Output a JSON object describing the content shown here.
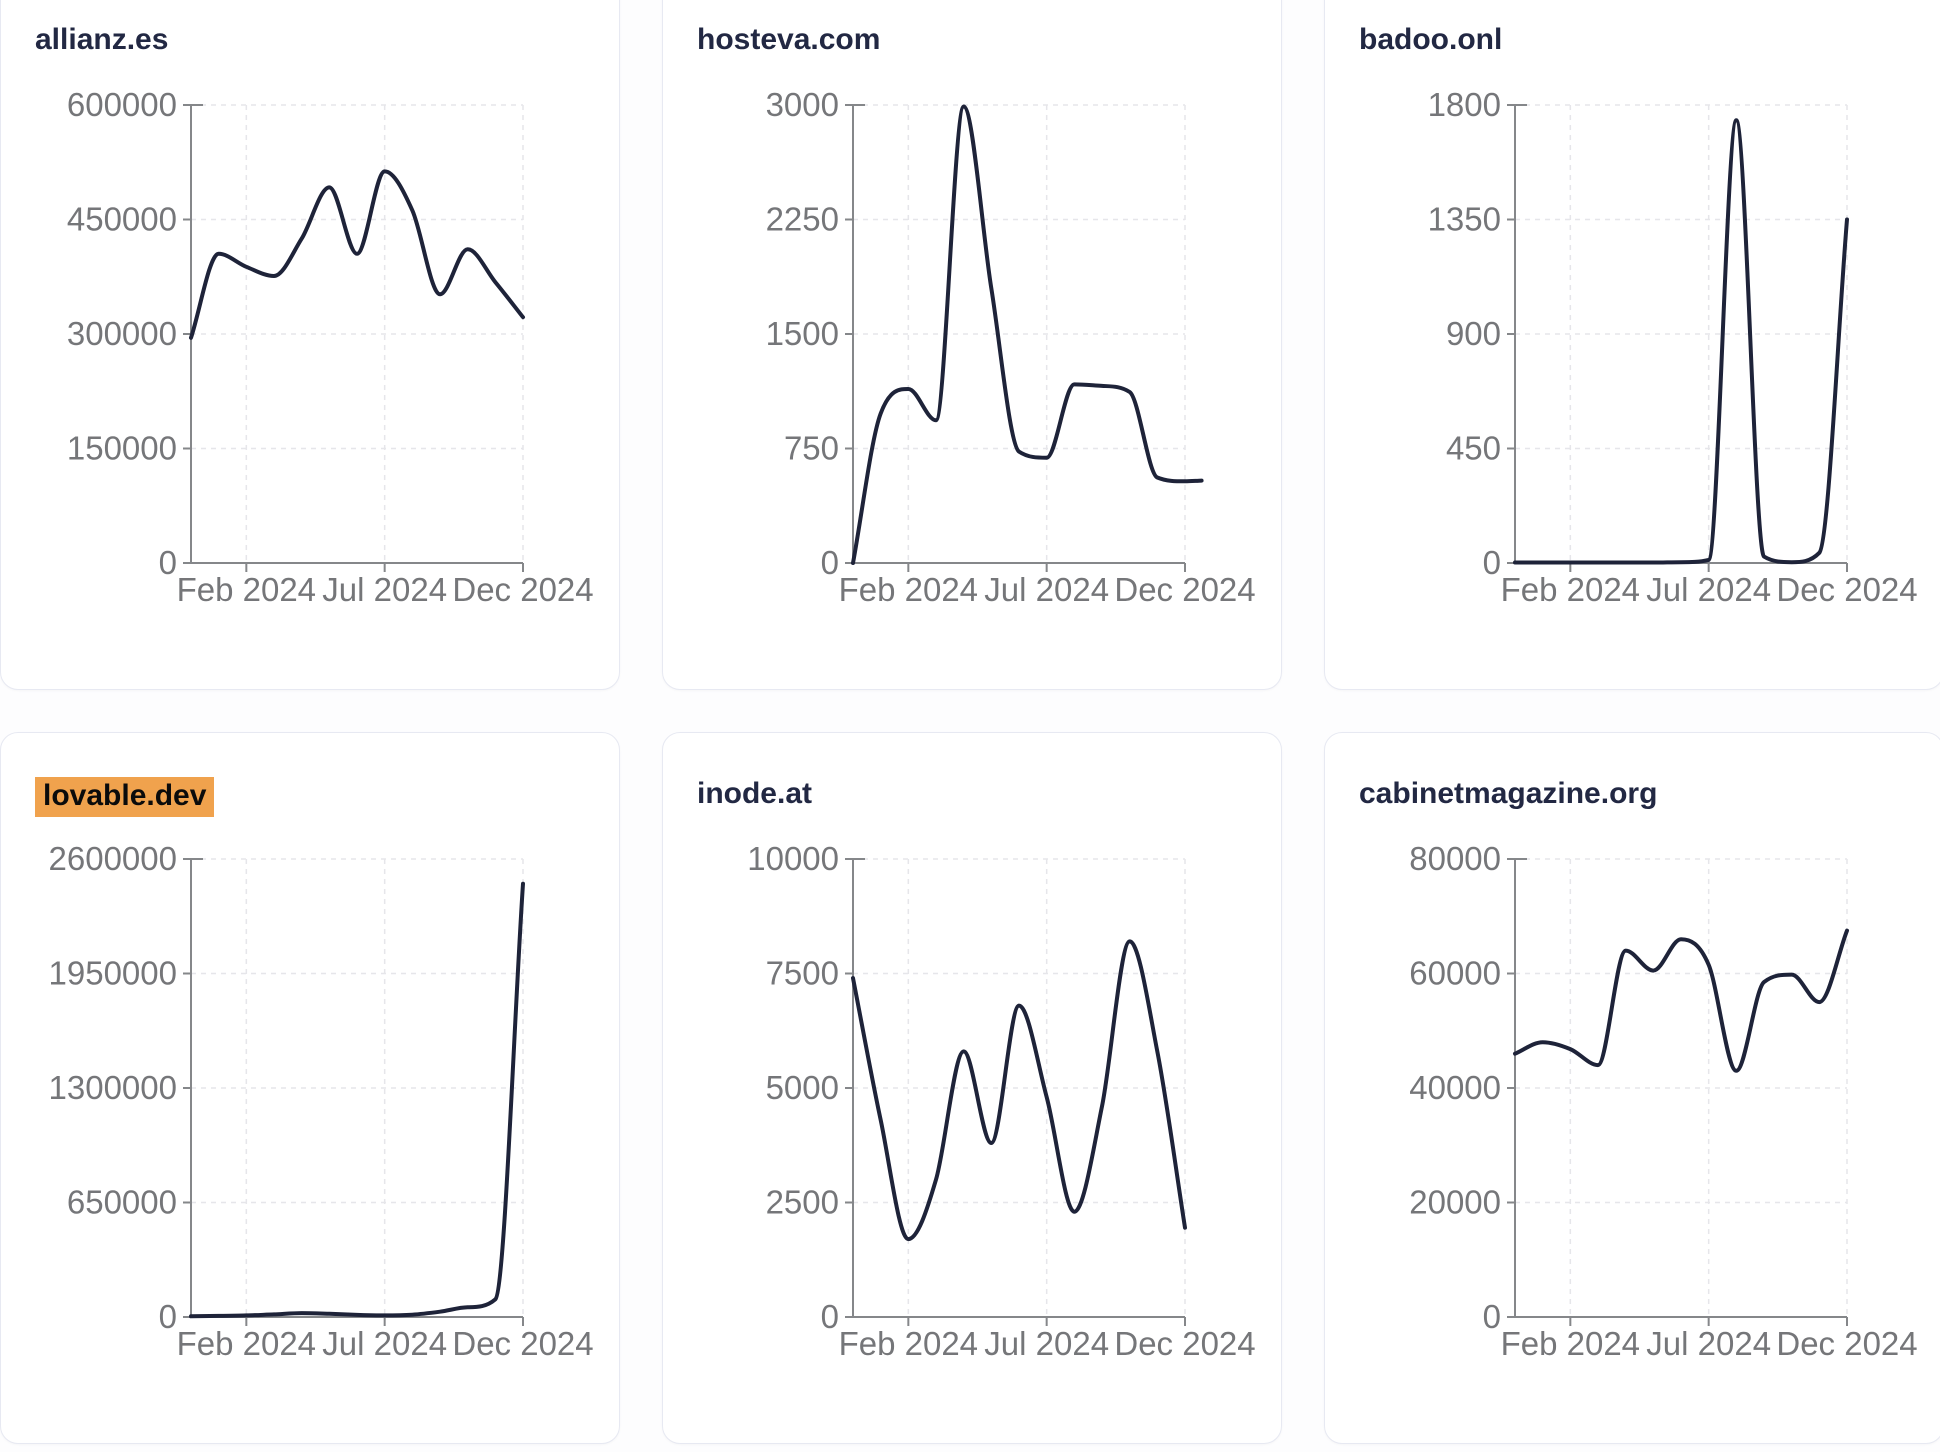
{
  "page": {
    "background": "#fdfdfe"
  },
  "theme": {
    "line_color": "#1e2339",
    "title_color": "#222843",
    "tick_label_color": "#757679",
    "axis_color": "#85878a",
    "grid_color": "#e6e6ea",
    "card_background": "#ffffff",
    "card_border": "#e7e9f2",
    "highlight_background": "#f0a24d",
    "highlight_text": "#0b0b0b"
  },
  "x_axis": {
    "start_month": "Dec 2023",
    "end_month": "Dec 2024",
    "tick_labels": [
      "Feb 2024",
      "Jul 2024",
      "Dec 2024"
    ],
    "tick_month_index": [
      2,
      7,
      12
    ]
  },
  "chart_data": [
    {
      "type": "line",
      "title": "allianz.es",
      "highlighted": false,
      "y_max": 600000,
      "y_ticks": [
        0,
        150000,
        300000,
        450000,
        600000
      ],
      "x_tick_labels": [
        "Feb 2024",
        "Jul 2024",
        "Dec 2024"
      ],
      "points": [
        [
          0,
          295000
        ],
        [
          1,
          405000
        ],
        [
          2,
          388000
        ],
        [
          3,
          376000
        ],
        [
          4,
          425000
        ],
        [
          5,
          492000
        ],
        [
          6,
          405000
        ],
        [
          7,
          513000
        ],
        [
          8,
          462000
        ],
        [
          9,
          352000
        ],
        [
          10,
          411000
        ],
        [
          11,
          368000
        ],
        [
          12,
          322000
        ]
      ]
    },
    {
      "type": "line",
      "title": "hosteva.com",
      "highlighted": false,
      "y_max": 3000,
      "y_ticks": [
        0,
        750,
        1500,
        2250,
        3000
      ],
      "x_tick_labels": [
        "Feb 2024",
        "Jul 2024",
        "Dec 2024"
      ],
      "points": [
        [
          0,
          0
        ],
        [
          1,
          980
        ],
        [
          2,
          1140
        ],
        [
          3,
          935
        ],
        [
          4,
          2990
        ],
        [
          5,
          1800
        ],
        [
          6,
          730
        ],
        [
          7,
          690
        ],
        [
          8,
          1170
        ],
        [
          9,
          1160
        ],
        [
          10,
          1120
        ],
        [
          11,
          560
        ],
        [
          12,
          535
        ],
        [
          12.6,
          540
        ]
      ]
    },
    {
      "type": "line",
      "title": "badoo.onl",
      "highlighted": false,
      "y_max": 1800,
      "y_ticks": [
        0,
        450,
        900,
        1350,
        1800
      ],
      "x_tick_labels": [
        "Feb 2024",
        "Jul 2024",
        "Dec 2024"
      ],
      "points": [
        [
          0,
          2
        ],
        [
          1,
          2
        ],
        [
          2,
          2
        ],
        [
          3,
          2
        ],
        [
          4,
          2
        ],
        [
          5,
          2
        ],
        [
          6,
          3
        ],
        [
          7,
          12
        ],
        [
          8,
          1740
        ],
        [
          9,
          25
        ],
        [
          10,
          3
        ],
        [
          11,
          40
        ],
        [
          12,
          1350
        ]
      ]
    },
    {
      "type": "line",
      "title": "lovable.dev",
      "highlighted": true,
      "y_max": 2600000,
      "y_ticks": [
        0,
        650000,
        1300000,
        1950000,
        2600000
      ],
      "x_tick_labels": [
        "Feb 2024",
        "Jul 2024",
        "Dec 2024"
      ],
      "points": [
        [
          0,
          4000
        ],
        [
          1,
          6000
        ],
        [
          2,
          9000
        ],
        [
          3,
          15000
        ],
        [
          4,
          22000
        ],
        [
          5,
          18000
        ],
        [
          6,
          12000
        ],
        [
          7,
          9000
        ],
        [
          8,
          13000
        ],
        [
          9,
          30000
        ],
        [
          10,
          55000
        ],
        [
          11,
          100000
        ],
        [
          12,
          2460000
        ]
      ]
    },
    {
      "type": "line",
      "title": "inode.at",
      "highlighted": false,
      "y_max": 10000,
      "y_ticks": [
        0,
        2500,
        5000,
        7500,
        10000
      ],
      "x_tick_labels": [
        "Feb 2024",
        "Jul 2024",
        "Dec 2024"
      ],
      "points": [
        [
          0,
          7400
        ],
        [
          1,
          4300
        ],
        [
          2,
          1700
        ],
        [
          3,
          3000
        ],
        [
          4,
          5800
        ],
        [
          5,
          3800
        ],
        [
          6,
          6800
        ],
        [
          7,
          4800
        ],
        [
          8,
          2300
        ],
        [
          9,
          4600
        ],
        [
          10,
          8200
        ],
        [
          11,
          5800
        ],
        [
          12,
          1950
        ]
      ]
    },
    {
      "type": "line",
      "title": "cabinetmagazine.org",
      "highlighted": false,
      "y_max": 80000,
      "y_ticks": [
        0,
        20000,
        40000,
        60000,
        80000
      ],
      "x_tick_labels": [
        "Feb 2024",
        "Jul 2024",
        "Dec 2024"
      ],
      "points": [
        [
          0,
          46000
        ],
        [
          1,
          48000
        ],
        [
          2,
          46800
        ],
        [
          3,
          44000
        ],
        [
          4,
          64000
        ],
        [
          5,
          60500
        ],
        [
          6,
          66000
        ],
        [
          7,
          61500
        ],
        [
          8,
          43000
        ],
        [
          9,
          58500
        ],
        [
          10,
          59800
        ],
        [
          11,
          55000
        ],
        [
          12,
          67500
        ]
      ]
    }
  ]
}
